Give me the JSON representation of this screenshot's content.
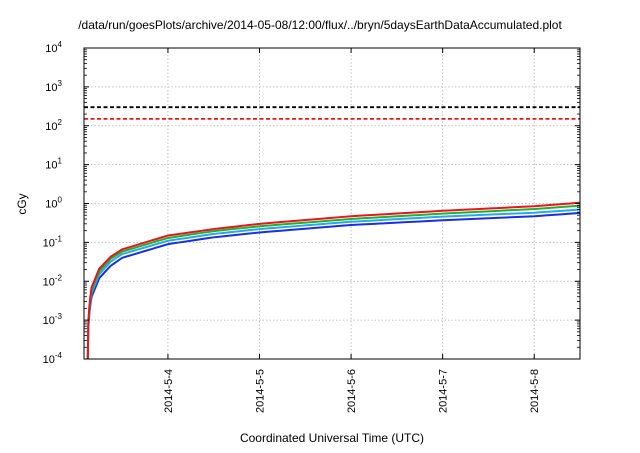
{
  "chart_data": {
    "type": "line",
    "title": "/data/run/goesPlots/archive/2014-05-08/12:00/flux/../bryn/5daysEarthDataAccumulated.plot",
    "xlabel": "Coordinated Universal Time (UTC)",
    "ylabel": "cGy",
    "y_scale": "log",
    "ylim": [
      0.0001,
      10000
    ],
    "xlim": [
      "2014-05-03 02:00",
      "2014-05-08 12:00"
    ],
    "grid": true,
    "y_ticks": [
      {
        "value": 0.0001,
        "base": "10",
        "exp": "-4"
      },
      {
        "value": 0.001,
        "base": "10",
        "exp": "-3"
      },
      {
        "value": 0.01,
        "base": "10",
        "exp": "-2"
      },
      {
        "value": 0.1,
        "base": "10",
        "exp": "-1"
      },
      {
        "value": 1,
        "base": "10",
        "exp": "0"
      },
      {
        "value": 10,
        "base": "10",
        "exp": "1"
      },
      {
        "value": 100,
        "base": "10",
        "exp": "2"
      },
      {
        "value": 1000,
        "base": "10",
        "exp": "3"
      },
      {
        "value": 10000,
        "base": "10",
        "exp": "4"
      }
    ],
    "x_ticks": [
      {
        "value": "2014-05-04 00:00",
        "label": "2014-5-4"
      },
      {
        "value": "2014-05-05 00:00",
        "label": "2014-5-5"
      },
      {
        "value": "2014-05-06 00:00",
        "label": "2014-5-6"
      },
      {
        "value": "2014-05-07 00:00",
        "label": "2014-5-7"
      },
      {
        "value": "2014-05-08 00:00",
        "label": "2014-5-8"
      }
    ],
    "thresholds": [
      {
        "value": 300,
        "color": "#000000",
        "style": "dashed"
      },
      {
        "value": 150,
        "color": "#e8161b",
        "style": "dashed"
      }
    ],
    "series": [
      {
        "color": "#1b2ee0",
        "x": [
          "2014-05-03 03:00",
          "2014-05-03 04:00",
          "2014-05-03 06:00",
          "2014-05-03 09:00",
          "2014-05-03 12:00",
          "2014-05-04 00:00",
          "2014-05-04 12:00",
          "2014-05-05 00:00",
          "2014-05-06 00:00",
          "2014-05-07 00:00",
          "2014-05-08 00:00",
          "2014-05-08 12:00"
        ],
        "y": [
          0.0001,
          0.004,
          0.012,
          0.025,
          0.04,
          0.09,
          0.135,
          0.18,
          0.28,
          0.37,
          0.47,
          0.57
        ]
      },
      {
        "color": "#28a9e8",
        "x": [
          "2014-05-03 03:00",
          "2014-05-03 04:00",
          "2014-05-03 06:00",
          "2014-05-03 09:00",
          "2014-05-03 12:00",
          "2014-05-04 00:00",
          "2014-05-04 12:00",
          "2014-05-05 00:00",
          "2014-05-06 00:00",
          "2014-05-07 00:00",
          "2014-05-08 00:00",
          "2014-05-08 12:00"
        ],
        "y": [
          0.0001,
          0.005,
          0.015,
          0.032,
          0.05,
          0.11,
          0.165,
          0.22,
          0.34,
          0.46,
          0.58,
          0.7
        ]
      },
      {
        "color": "#22b030",
        "x": [
          "2014-05-03 03:00",
          "2014-05-03 04:00",
          "2014-05-03 06:00",
          "2014-05-03 09:00",
          "2014-05-03 12:00",
          "2014-05-04 00:00",
          "2014-05-04 12:00",
          "2014-05-05 00:00",
          "2014-05-06 00:00",
          "2014-05-07 00:00",
          "2014-05-08 00:00",
          "2014-05-08 12:00"
        ],
        "y": [
          0.0001,
          0.006,
          0.018,
          0.038,
          0.058,
          0.13,
          0.195,
          0.26,
          0.4,
          0.55,
          0.72,
          0.88
        ]
      },
      {
        "color": "#e8161b",
        "x": [
          "2014-05-03 03:00",
          "2014-05-03 04:00",
          "2014-05-03 06:00",
          "2014-05-03 09:00",
          "2014-05-03 12:00",
          "2014-05-04 00:00",
          "2014-05-04 12:00",
          "2014-05-05 00:00",
          "2014-05-06 00:00",
          "2014-05-07 00:00",
          "2014-05-08 00:00",
          "2014-05-08 12:00"
        ],
        "y": [
          0.0001,
          0.007,
          0.021,
          0.043,
          0.066,
          0.15,
          0.22,
          0.3,
          0.47,
          0.65,
          0.85,
          1.05
        ]
      }
    ]
  }
}
